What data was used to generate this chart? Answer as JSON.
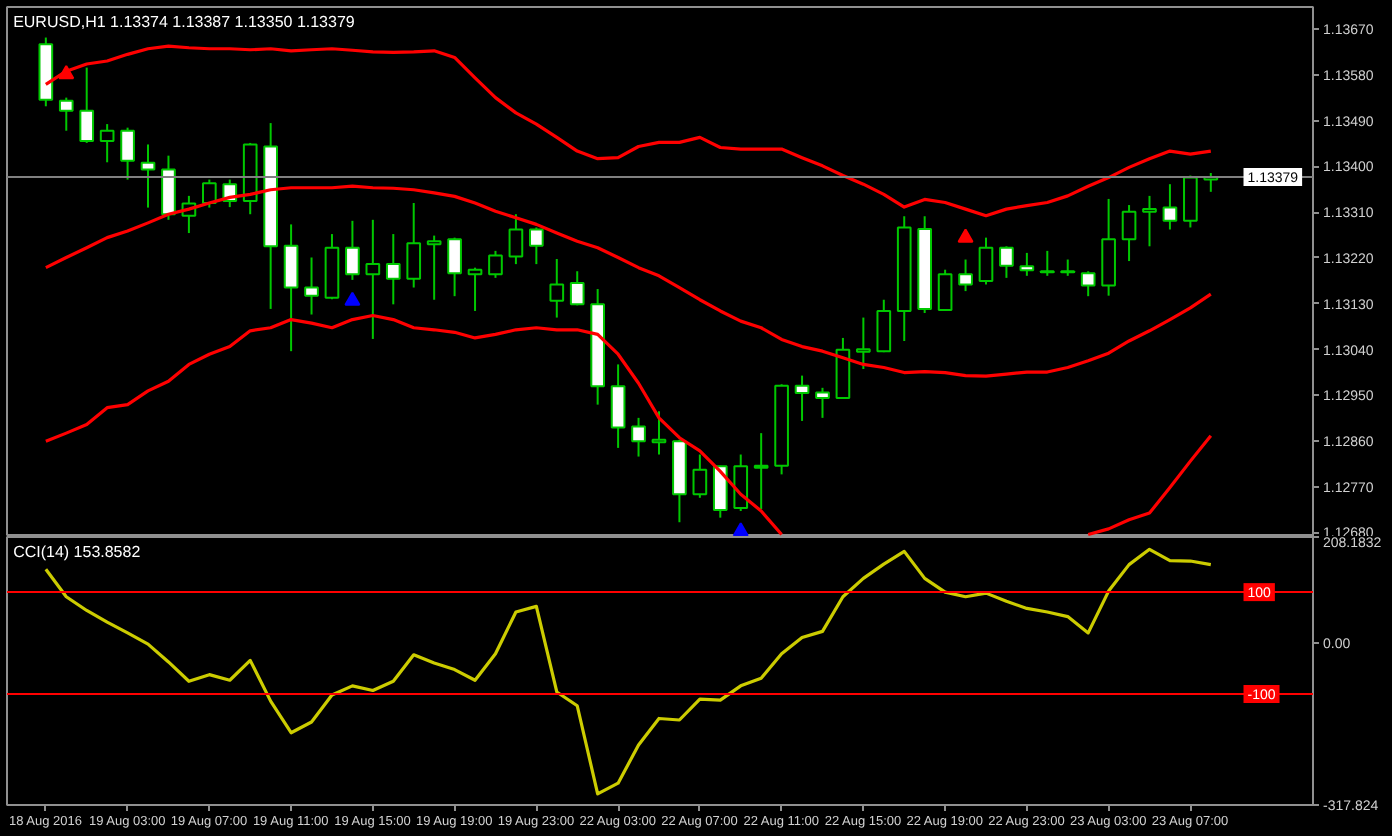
{
  "chart_data": [
    {
      "type": "candlestick",
      "title": "EURUSD,H1  1.13374 1.13387 1.13350 1.13379",
      "color": "#00c800",
      "categories": [
        null,
        null,
        null,
        null,
        null,
        null,
        null,
        null,
        null,
        null,
        null,
        null,
        null,
        null,
        null,
        null,
        null,
        null,
        null,
        null,
        null,
        null,
        null,
        null,
        null,
        null,
        null,
        null,
        null,
        null,
        null,
        null,
        null,
        null,
        null,
        null,
        null,
        null,
        null,
        null,
        null,
        null,
        null,
        null,
        null,
        null,
        null,
        null,
        null,
        null,
        null,
        null,
        null,
        null,
        null,
        null,
        null,
        null
      ],
      "ohlc": [
        [
          1.1364,
          1.13653,
          1.13518,
          1.13531
        ],
        [
          1.13529,
          1.13535,
          1.1347,
          1.13509
        ],
        [
          1.13509,
          1.13594,
          1.13446,
          1.1345
        ],
        [
          1.1345,
          1.13483,
          1.13408,
          1.1347
        ],
        [
          1.1347,
          1.13476,
          1.13374,
          1.13411
        ],
        [
          1.13407,
          1.13443,
          1.13319,
          1.13394
        ],
        [
          1.13394,
          1.13421,
          1.13295,
          1.13306
        ],
        [
          1.13303,
          1.13342,
          1.13269,
          1.13327
        ],
        [
          1.13328,
          1.13374,
          1.13319,
          1.13367
        ],
        [
          1.13365,
          1.13374,
          1.1332,
          1.13332
        ],
        [
          1.13332,
          1.13446,
          1.13306,
          1.13443
        ],
        [
          1.13439,
          1.13485,
          1.1312,
          1.13243
        ],
        [
          1.13244,
          1.13286,
          1.13037,
          1.13162
        ],
        [
          1.13162,
          1.13221,
          1.13109,
          1.13146
        ],
        [
          1.13142,
          1.13267,
          1.13139,
          1.1324
        ],
        [
          1.1324,
          1.13293,
          1.13177,
          1.13188
        ],
        [
          1.13188,
          1.13295,
          1.13061,
          1.13208
        ],
        [
          1.13208,
          1.13267,
          1.13129,
          1.13179
        ],
        [
          1.13179,
          1.13328,
          1.13162,
          1.13249
        ],
        [
          1.13247,
          1.13264,
          1.13138,
          1.13253
        ],
        [
          1.13257,
          1.1326,
          1.13145,
          1.1319
        ],
        [
          1.13188,
          1.13201,
          1.13116,
          1.13197
        ],
        [
          1.13188,
          1.13234,
          1.13181,
          1.13225
        ],
        [
          1.13223,
          1.13306,
          1.13208,
          1.13276
        ],
        [
          1.13276,
          1.1328,
          1.13208,
          1.13244
        ],
        [
          1.13136,
          1.13218,
          1.13103,
          1.13168
        ],
        [
          1.13171,
          1.13194,
          1.13127,
          1.13129
        ],
        [
          1.13129,
          1.13159,
          1.12932,
          1.12968
        ],
        [
          1.12968,
          1.13011,
          1.12847,
          1.12887
        ],
        [
          1.12889,
          1.12906,
          1.1283,
          1.1286
        ],
        [
          1.12858,
          1.12919,
          1.12834,
          1.12863
        ],
        [
          1.1286,
          1.12863,
          1.12701,
          1.12756
        ],
        [
          1.12756,
          1.12834,
          1.12749,
          1.12804
        ],
        [
          1.12811,
          1.12812,
          1.1271,
          1.12725
        ],
        [
          1.12729,
          1.12834,
          1.12723,
          1.12811
        ],
        [
          1.12808,
          1.12876,
          1.12727,
          1.12812
        ],
        [
          1.12812,
          1.12972,
          1.12795,
          1.12969
        ],
        [
          1.12969,
          1.12989,
          1.129,
          1.12955
        ],
        [
          1.12956,
          1.12965,
          1.12906,
          1.12945
        ],
        [
          1.12945,
          1.13063,
          1.12944,
          1.1304
        ],
        [
          1.13036,
          1.13103,
          1.13002,
          1.13041
        ],
        [
          1.13037,
          1.13138,
          1.13035,
          1.13116
        ],
        [
          1.13116,
          1.13302,
          1.13057,
          1.1328
        ],
        [
          1.13277,
          1.13302,
          1.13112,
          1.1312
        ],
        [
          1.13118,
          1.13197,
          1.13116,
          1.13188
        ],
        [
          1.13188,
          1.13217,
          1.13155,
          1.13168
        ],
        [
          1.13175,
          1.1326,
          1.13168,
          1.1324
        ],
        [
          1.1324,
          1.13243,
          1.13181,
          1.13205
        ],
        [
          1.13204,
          1.1323,
          1.13185,
          1.13196
        ],
        [
          1.13192,
          1.13234,
          1.13185,
          1.13194
        ],
        [
          1.13192,
          1.13217,
          1.13185,
          1.13194
        ],
        [
          1.1319,
          1.13194,
          1.13145,
          1.13166
        ],
        [
          1.13166,
          1.13336,
          1.13146,
          1.13257
        ],
        [
          1.13257,
          1.13324,
          1.13214,
          1.13311
        ],
        [
          1.13311,
          1.13342,
          1.13243,
          1.13316
        ],
        [
          1.13319,
          1.13365,
          1.13276,
          1.13293
        ],
        [
          1.13293,
          1.13382,
          1.1328,
          1.13378
        ],
        [
          1.13374,
          1.13387,
          1.1335,
          1.13379
        ]
      ],
      "series": [
        {
          "type": "line",
          "color": "#ff0000",
          "values": [
            1.13561,
            1.13587,
            1.13601,
            1.13607,
            1.1362,
            1.13631,
            1.13636,
            1.13633,
            1.13631,
            1.13631,
            1.13629,
            1.13631,
            1.13627,
            1.13629,
            1.13631,
            1.13628,
            1.13625,
            1.13624,
            1.13625,
            1.13627,
            1.13614,
            1.13574,
            1.13535,
            1.13505,
            1.13483,
            1.13457,
            1.1343,
            1.13415,
            1.13417,
            1.13439,
            1.13447,
            1.13447,
            1.13457,
            1.13437,
            1.13434,
            1.13434,
            1.13434,
            1.13417,
            1.13401,
            1.13382,
            1.13365,
            1.13345,
            1.1332,
            1.13335,
            1.13329,
            1.13316,
            1.13303,
            1.13316,
            1.13323,
            1.13329,
            1.13342,
            1.13361,
            1.13378,
            1.13398,
            1.13415,
            1.1343,
            1.13424,
            1.1343
          ]
        },
        {
          "type": "line",
          "color": "#ff0000",
          "values": [
            1.13201,
            1.13221,
            1.1324,
            1.1326,
            1.13273,
            1.13289,
            1.13306,
            1.13316,
            1.13328,
            1.13339,
            1.13345,
            1.13354,
            1.13358,
            1.13358,
            1.13358,
            1.13361,
            1.13358,
            1.13357,
            1.13354,
            1.13348,
            1.13341,
            1.13328,
            1.13312,
            1.13299,
            1.13286,
            1.13269,
            1.13253,
            1.1324,
            1.13221,
            1.13201,
            1.13185,
            1.13162,
            1.13138,
            1.13116,
            1.13096,
            1.13083,
            1.1306,
            1.13046,
            1.13037,
            1.13024,
            1.13011,
            1.13005,
            1.12995,
            1.12997,
            1.12995,
            1.12989,
            1.12988,
            1.12992,
            1.12996,
            1.12996,
            1.13005,
            1.13018,
            1.13033,
            1.13057,
            1.13077,
            1.13099,
            1.13122,
            1.13149
          ]
        },
        {
          "type": "line",
          "color": "#ff0000",
          "values": [
            1.1286,
            1.12876,
            1.12893,
            1.12926,
            1.12932,
            1.12959,
            1.12978,
            1.13011,
            1.13031,
            1.13046,
            1.13077,
            1.13083,
            1.13099,
            1.13092,
            1.13083,
            1.13099,
            1.13107,
            1.13099,
            1.13083,
            1.13079,
            1.13074,
            1.13063,
            1.1307,
            1.13079,
            1.13083,
            1.13079,
            1.13079,
            1.1307,
            1.13031,
            1.12974,
            1.12906,
            1.12867,
            1.12841,
            1.12801,
            1.12756,
            1.12723,
            1.12677,
            null,
            null,
            null,
            null,
            null,
            null,
            null,
            null,
            null,
            null,
            null,
            null,
            null,
            null,
            1.12677,
            1.12688,
            1.12706,
            1.12719,
            1.12769,
            1.12821,
            1.12871
          ]
        },
        {
          "type": "scatter",
          "marker": "triangle",
          "color": "#0000ff",
          "values": [
            null,
            null,
            null,
            null,
            null,
            null,
            null,
            null,
            null,
            null,
            null,
            null,
            null,
            null,
            null,
            1.13136,
            null,
            null,
            null,
            null,
            null,
            null,
            null,
            null,
            null,
            null,
            null,
            null,
            null,
            null,
            null,
            null,
            null,
            null,
            1.12683,
            null,
            null,
            null,
            null,
            null,
            null,
            null,
            null,
            null,
            null,
            null,
            null,
            null,
            null,
            null,
            null,
            null,
            null,
            null,
            null,
            null,
            null,
            null
          ]
        },
        {
          "type": "scatter",
          "marker": "triangle",
          "color": "#ff0000",
          "values": [
            null,
            1.13581,
            null,
            null,
            null,
            null,
            null,
            null,
            null,
            null,
            null,
            null,
            null,
            null,
            null,
            null,
            null,
            null,
            null,
            null,
            null,
            null,
            null,
            null,
            null,
            null,
            null,
            null,
            null,
            null,
            null,
            null,
            null,
            null,
            null,
            null,
            null,
            null,
            null,
            null,
            null,
            null,
            null,
            null,
            null,
            1.1326,
            null,
            null,
            null,
            null,
            null,
            null,
            null,
            null,
            null,
            null,
            null,
            null
          ]
        }
      ],
      "ylim": [
        1.12672,
        1.13713
      ],
      "yticks": [
        {
          "value": 1.1268,
          "label": "1.12680"
        },
        {
          "value": 1.1277,
          "label": "1.12770"
        },
        {
          "value": 1.1286,
          "label": "1.12860"
        },
        {
          "value": 1.1295,
          "label": "1.12950"
        },
        {
          "value": 1.1304,
          "label": "1.13040"
        },
        {
          "value": 1.1313,
          "label": "1.13130"
        },
        {
          "value": 1.1322,
          "label": "1.13220"
        },
        {
          "value": 1.1331,
          "label": "1.13310"
        },
        {
          "value": 1.134,
          "label": "1.13400"
        },
        {
          "value": 1.1349,
          "label": "1.13490"
        },
        {
          "value": 1.1358,
          "label": "1.13580"
        },
        {
          "value": 1.1367,
          "label": "1.13670"
        }
      ],
      "ref_lines": [
        {
          "axis": "y",
          "value": 1.13379,
          "label": "1.13379",
          "color": "#808080"
        }
      ],
      "tick_labels": "y"
    },
    {
      "type": "line",
      "title": "CCI(14) 153.8582",
      "categories": [
        "18 Aug 2016",
        null,
        null,
        null,
        "19 Aug 03:00",
        null,
        null,
        null,
        "19 Aug 07:00",
        null,
        null,
        null,
        "19 Aug 11:00",
        null,
        null,
        null,
        "19 Aug 15:00",
        null,
        null,
        null,
        "19 Aug 19:00",
        null,
        null,
        null,
        "19 Aug 23:00",
        null,
        null,
        null,
        "22 Aug 03:00",
        null,
        null,
        null,
        "22 Aug 07:00",
        null,
        null,
        null,
        "22 Aug 11:00",
        null,
        null,
        null,
        "22 Aug 15:00",
        null,
        null,
        null,
        "22 Aug 19:00",
        null,
        null,
        null,
        "22 Aug 23:00",
        null,
        null,
        null,
        "23 Aug 03:00",
        null,
        null,
        null,
        "23 Aug 07:00",
        null
      ],
      "series": [
        {
          "color": "#cccc00",
          "values": [
            145,
            91,
            64,
            41,
            20,
            -2,
            -37,
            -75,
            -62,
            -73,
            -34,
            -114,
            -176,
            -155,
            -102,
            -84,
            -93,
            -75,
            -23,
            -39,
            -52,
            -73,
            -21,
            61,
            72,
            -96,
            -123,
            -296,
            -275,
            -200,
            -148,
            -151,
            -110,
            -112,
            -84,
            -69,
            -21,
            11,
            23,
            91,
            127,
            155,
            180,
            127,
            100,
            91,
            98,
            82,
            68,
            61,
            52,
            20,
            102,
            154,
            184,
            162,
            161,
            154
          ]
        }
      ],
      "ylim": [
        -317.824,
        208.1832
      ],
      "yticks": [
        208.1832,
        {
          "value": 0,
          "label": "0.00"
        },
        -317.824
      ],
      "ref_lines": [
        {
          "axis": "y",
          "value": 100,
          "label": "100",
          "color": "#ff0000"
        },
        {
          "axis": "y",
          "value": -100,
          "label": "-100",
          "color": "#ff0000"
        }
      ]
    }
  ]
}
